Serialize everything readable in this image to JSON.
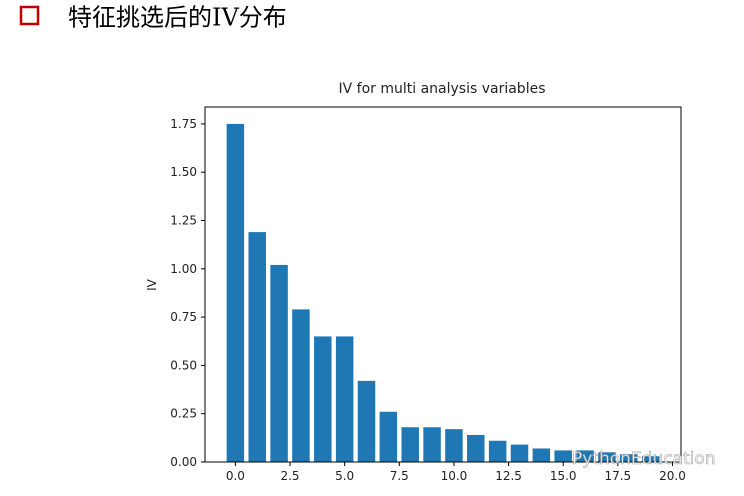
{
  "header": {
    "title": "特征挑选后的IV分布"
  },
  "watermark": "PythonEducation",
  "chart_data": {
    "type": "bar",
    "title": "IV for multi analysis variables",
    "y_label": "IV",
    "x": [
      0,
      1,
      2,
      3,
      4,
      5,
      6,
      7,
      8,
      9,
      10,
      11,
      12,
      13,
      14,
      15,
      16,
      17,
      18,
      19
    ],
    "values": [
      1.75,
      1.19,
      1.02,
      0.79,
      0.65,
      0.65,
      0.42,
      0.26,
      0.18,
      0.18,
      0.17,
      0.14,
      0.11,
      0.09,
      0.07,
      0.06,
      0.06,
      0.05,
      0.04,
      0.03
    ],
    "color": "#1f77b4",
    "xlim": [
      -1.39,
      20.39
    ],
    "xticks": [
      {
        "value": 0,
        "label": "0.0"
      },
      2.5,
      {
        "value": 5,
        "label": "5.0"
      },
      7.5,
      {
        "value": 10,
        "label": "10.0"
      },
      12.5,
      {
        "value": 15,
        "label": "15.0"
      },
      17.5,
      {
        "value": 20,
        "label": "20.0"
      }
    ],
    "ylim": [
      0,
      1.8375
    ],
    "yticks": [
      {
        "value": 0,
        "label": "0.00"
      },
      0.25,
      {
        "value": 0.5,
        "label": "0.50"
      },
      0.75,
      {
        "value": 1,
        "label": "1.00"
      },
      1.25,
      {
        "value": 1.5,
        "label": "1.50"
      },
      1.75
    ],
    "grid": false
  }
}
